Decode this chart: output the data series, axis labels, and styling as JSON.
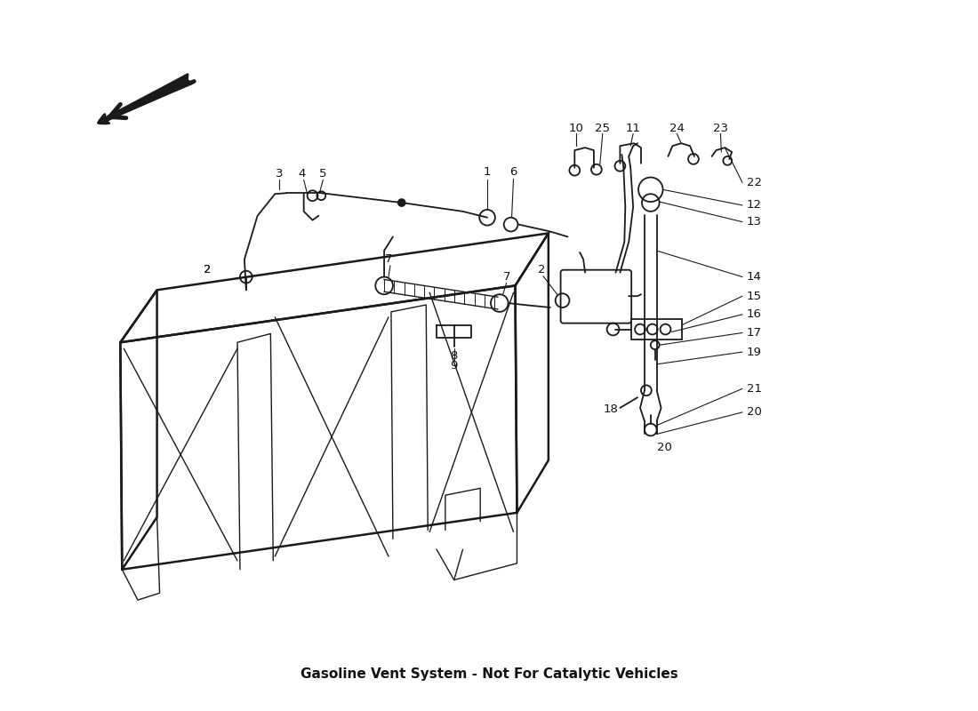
{
  "title": "Gasoline Vent System - Not For Catalytic Vehicles",
  "bg_color": "#ffffff",
  "line_color": "#1a1a1a",
  "label_color": "#111111",
  "figsize": [
    11.0,
    8.0
  ],
  "dpi": 100,
  "lw_main": 1.3,
  "lw_thick": 1.8,
  "lw_thin": 1.0,
  "lw_callout": 0.8,
  "label_fontsize": 9.5,
  "title_fontsize": 11
}
